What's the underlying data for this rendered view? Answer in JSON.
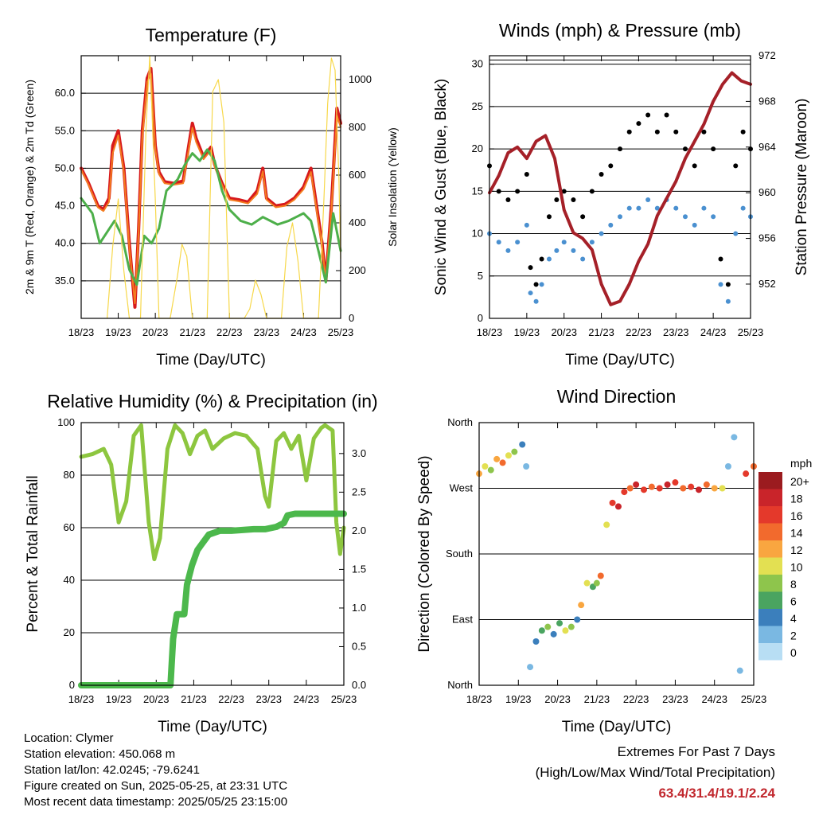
{
  "footer": {
    "location": "Location: Clymer",
    "elevation": "Station elevation: 450.068 m",
    "latlon": "Station lat/lon: 42.0245; -79.6241",
    "created": "Figure created on Sun, 2025-05-25, at 23:31 UTC",
    "recent": "Most recent data timestamp: 2025/05/25 23:15:00",
    "extremes_title": "Extremes For Past 7 Days",
    "extremes_sub": "(High/Low/Max Wind/Total Precipitation)",
    "extremes_values": "63.4/31.4/19.1/2.24"
  },
  "chart_data": [
    {
      "type": "line",
      "title": "Temperature (F)",
      "xlabel": "Time (Day/UTC)",
      "ylabel": "2m & 9m T (Red, Orange) & 2m Td (Green)",
      "y2label": "Solar Insolation (Yellow)",
      "xticks": [
        "18/23",
        "19/23",
        "20/23",
        "21/23",
        "22/23",
        "23/23",
        "24/23",
        "25/23"
      ],
      "xlim": [
        0,
        7
      ],
      "ylim": [
        30,
        65
      ],
      "yticks": [
        35.0,
        40.0,
        45.0,
        50.0,
        55.0,
        60.0
      ],
      "y2lim": [
        0,
        1100
      ],
      "y2ticks": [
        0,
        200,
        400,
        600,
        800,
        1000
      ],
      "colors": {
        "t2m": "#d7191c",
        "t9m": "#f47d20",
        "td": "#4daf4a",
        "solar": "#f7d84a"
      },
      "series": [
        {
          "name": "2m T",
          "axis": "left",
          "x": [
            0,
            0.2,
            0.45,
            0.6,
            0.75,
            0.85,
            1,
            1.15,
            1.3,
            1.45,
            1.55,
            1.65,
            1.78,
            1.88,
            2,
            2.1,
            2.25,
            2.5,
            2.75,
            2.9,
            3,
            3.1,
            3.3,
            3.5,
            3.6,
            3.8,
            4,
            4.25,
            4.5,
            4.75,
            4.9,
            5,
            5.25,
            5.5,
            5.75,
            6,
            6.2,
            6.35,
            6.5,
            6.6,
            6.75,
            6.9,
            7
          ],
          "y": [
            50,
            48,
            45,
            44.5,
            46,
            53,
            55,
            50,
            40,
            31.5,
            42,
            55,
            62,
            63.3,
            53,
            49.5,
            48.2,
            48,
            48.3,
            53,
            56,
            54,
            51.5,
            52.8,
            50.5,
            48,
            46,
            45.8,
            45.5,
            47,
            50,
            46,
            45,
            45.2,
            46,
            47.5,
            50,
            45,
            40,
            35,
            45,
            58,
            56
          ]
        },
        {
          "name": "9m T",
          "axis": "left",
          "x": [
            0,
            0.2,
            0.45,
            0.6,
            0.75,
            0.85,
            1,
            1.15,
            1.3,
            1.45,
            1.55,
            1.65,
            1.78,
            1.88,
            2,
            2.1,
            2.25,
            2.5,
            2.75,
            2.9,
            3,
            3.1,
            3.3,
            3.5,
            3.6,
            3.8,
            4,
            4.25,
            4.5,
            4.75,
            4.9,
            5,
            5.25,
            5.5,
            5.75,
            6,
            6.2,
            6.35,
            6.5,
            6.6,
            6.75,
            6.9,
            7
          ],
          "y": [
            49.8,
            47.8,
            44.8,
            44.3,
            45.5,
            52,
            54.4,
            49.5,
            39.5,
            32,
            41.5,
            54,
            61.5,
            62.6,
            52.6,
            49.2,
            48,
            47.8,
            48,
            52.5,
            55.4,
            53.5,
            51.2,
            52.4,
            50.2,
            47.8,
            45.8,
            45.6,
            45.3,
            46.6,
            49.6,
            45.8,
            44.8,
            45,
            45.8,
            47.2,
            49.5,
            44.5,
            39.5,
            35.2,
            44.5,
            57,
            55.5
          ]
        },
        {
          "name": "2m Td",
          "axis": "left",
          "x": [
            0,
            0.3,
            0.5,
            0.7,
            0.9,
            1.1,
            1.3,
            1.5,
            1.7,
            1.9,
            2.1,
            2.3,
            2.6,
            2.8,
            3,
            3.2,
            3.4,
            3.6,
            3.8,
            4,
            4.3,
            4.6,
            4.9,
            5.1,
            5.3,
            5.6,
            5.8,
            6,
            6.2,
            6.4,
            6.6,
            6.8,
            7
          ],
          "y": [
            46,
            44,
            40,
            41.5,
            43,
            41,
            36.5,
            34.5,
            41,
            40,
            42,
            47,
            48.5,
            50.5,
            52,
            51,
            52.5,
            51,
            47,
            44.5,
            43,
            42.5,
            43.5,
            43,
            42.5,
            43,
            43.5,
            44,
            43,
            39,
            34.8,
            44,
            39
          ]
        },
        {
          "name": "Solar Insolation",
          "axis": "right",
          "x": [
            0.7,
            0.85,
            1,
            1.15,
            1.3,
            1.6,
            1.75,
            1.85,
            2,
            2.1,
            2.4,
            2.6,
            2.72,
            2.85,
            3,
            3.4,
            3.55,
            3.7,
            3.85,
            4,
            4.4,
            4.55,
            4.7,
            4.85,
            5,
            5.4,
            5.55,
            5.7,
            5.85,
            6,
            6.4,
            6.55,
            6.65,
            6.75,
            6.85,
            6.95,
            7
          ],
          "y": [
            0,
            300,
            500,
            200,
            0,
            0,
            800,
            1100,
            500,
            0,
            0,
            180,
            310,
            260,
            0,
            0,
            950,
            1000,
            820,
            0,
            0,
            40,
            160,
            100,
            0,
            0,
            300,
            400,
            240,
            0,
            0,
            500,
            900,
            1090,
            1040,
            600,
            250
          ]
        }
      ]
    },
    {
      "type": "scatter",
      "title": "Winds (mph) & Pressure (mb)",
      "xlabel": "Time (Day/UTC)",
      "ylabel": "Sonic Wind & Gust (Blue, Black)",
      "y2label": "Station Pressure (Maroon)",
      "xticks": [
        "18/23",
        "19/23",
        "20/23",
        "21/23",
        "22/23",
        "23/23",
        "24/23",
        "25/23"
      ],
      "xlim": [
        0,
        7
      ],
      "ylim": [
        0,
        31
      ],
      "yticks": [
        0,
        5,
        10,
        15,
        20,
        25,
        30
      ],
      "y2lim": [
        949,
        972
      ],
      "y2ticks": [
        952,
        956,
        960,
        964,
        968,
        972
      ],
      "colors": {
        "wind": "#4a90d0",
        "gust": "#000000",
        "pressure": "#a52028"
      },
      "series": [
        {
          "name": "Wind",
          "axis": "left",
          "x": [
            0,
            0.25,
            0.5,
            0.75,
            1,
            1.1,
            1.25,
            1.4,
            1.6,
            1.8,
            2,
            2.25,
            2.5,
            2.75,
            3,
            3.25,
            3.5,
            3.75,
            4,
            4.25,
            4.5,
            4.75,
            5,
            5.25,
            5.5,
            5.75,
            6,
            6.2,
            6.4,
            6.6,
            6.8,
            7
          ],
          "y": [
            10,
            9,
            8,
            9,
            11,
            3,
            2,
            4,
            7,
            8,
            9,
            8,
            7,
            9,
            10,
            11,
            12,
            13,
            13,
            14,
            13,
            14,
            13,
            12,
            11,
            13,
            12,
            4,
            2,
            10,
            13,
            12
          ]
        },
        {
          "name": "Gust",
          "axis": "left",
          "x": [
            0,
            0.25,
            0.5,
            0.75,
            1,
            1.1,
            1.25,
            1.4,
            1.6,
            1.8,
            2,
            2.25,
            2.5,
            2.75,
            3,
            3.25,
            3.5,
            3.75,
            4,
            4.25,
            4.5,
            4.75,
            5,
            5.25,
            5.5,
            5.75,
            6,
            6.2,
            6.4,
            6.6,
            6.8,
            7
          ],
          "y": [
            18,
            15,
            14,
            15,
            17,
            6,
            4,
            7,
            12,
            14,
            15,
            14,
            12,
            15,
            17,
            18,
            20,
            22,
            23,
            24,
            22,
            24,
            22,
            20,
            18,
            22,
            20,
            7,
            4,
            18,
            22,
            20
          ]
        },
        {
          "name": "Pressure",
          "axis": "right",
          "x": [
            0,
            0.25,
            0.5,
            0.75,
            1,
            1.25,
            1.5,
            1.75,
            2,
            2.25,
            2.5,
            2.75,
            3,
            3.25,
            3.5,
            3.75,
            4,
            4.25,
            4.5,
            4.75,
            5,
            5.25,
            5.5,
            5.75,
            6,
            6.25,
            6.5,
            6.75,
            7
          ],
          "y": [
            960,
            961.5,
            963.5,
            964,
            963,
            964.5,
            965,
            963,
            958.5,
            956.5,
            956,
            955,
            952,
            950.2,
            950.5,
            952,
            954,
            955.5,
            958,
            959.5,
            961,
            963,
            964.5,
            966,
            968,
            969.5,
            970.5,
            969.8,
            969.5
          ]
        }
      ]
    },
    {
      "type": "line",
      "title": "Relative Humidity (%) & Precipitation (in)",
      "xlabel": "Time (Day/UTC)",
      "ylabel": "Percent & Total Rainfall",
      "xticks": [
        "18/23",
        "19/23",
        "20/23",
        "21/23",
        "22/23",
        "23/23",
        "24/23",
        "25/23"
      ],
      "xlim": [
        0,
        7
      ],
      "ylim": [
        0,
        100
      ],
      "yticks": [
        0,
        20,
        40,
        60,
        80,
        100
      ],
      "y2lim": [
        0,
        3.4
      ],
      "y2ticks": [
        "0.0",
        "0.5",
        "1.0",
        "1.5",
        "2.0",
        "2.5",
        "3.0"
      ],
      "colors": {
        "rh": "#8dc63f",
        "precip": "#4cb84c"
      },
      "series": [
        {
          "name": "Relative Humidity",
          "axis": "left",
          "x": [
            0,
            0.3,
            0.6,
            0.8,
            1,
            1.2,
            1.4,
            1.6,
            1.8,
            1.95,
            2.1,
            2.3,
            2.5,
            2.7,
            2.9,
            3.1,
            3.3,
            3.5,
            3.8,
            4.1,
            4.4,
            4.7,
            4.9,
            5,
            5.2,
            5.4,
            5.6,
            5.8,
            6,
            6.2,
            6.4,
            6.5,
            6.7,
            6.8,
            6.9,
            7
          ],
          "y": [
            87,
            88,
            90,
            84,
            62,
            70,
            95,
            99,
            62,
            48,
            56,
            90,
            99,
            96,
            88,
            95,
            97,
            90,
            94,
            96,
            95,
            90,
            72,
            68,
            93,
            96,
            90,
            95,
            78,
            94,
            98,
            99,
            97,
            62,
            50,
            60
          ]
        },
        {
          "name": "Total Precipitation",
          "axis": "right",
          "x": [
            0,
            1,
            2,
            2.38,
            2.45,
            2.55,
            2.75,
            2.82,
            2.95,
            3.1,
            3.4,
            3.7,
            4,
            4.3,
            4.6,
            4.9,
            5.2,
            5.4,
            5.5,
            5.7,
            6,
            6.5,
            7
          ],
          "y": [
            0,
            0,
            0,
            0,
            0.6,
            0.92,
            0.92,
            1.3,
            1.55,
            1.75,
            1.95,
            2.0,
            2.0,
            2.01,
            2.02,
            2.02,
            2.05,
            2.1,
            2.2,
            2.22,
            2.22,
            2.22,
            2.22
          ]
        }
      ]
    },
    {
      "type": "scatter",
      "title": "Wind Direction",
      "xlabel": "Time (Day/UTC)",
      "ylabel": "Direction (Colored By Speed)",
      "xticks": [
        "18/23",
        "19/23",
        "20/23",
        "21/23",
        "22/23",
        "23/23",
        "24/23",
        "25/23"
      ],
      "xlim": [
        0,
        7
      ],
      "ylim": [
        0,
        360
      ],
      "yticks": [
        "North",
        "East",
        "South",
        "West",
        "North"
      ],
      "legend_title": "mph",
      "legend_labels": [
        "20+",
        "18",
        "16",
        "14",
        "12",
        "10",
        "8",
        "6",
        "4",
        "2",
        "0"
      ],
      "legend_colors": [
        "#9b1b1f",
        "#c9242a",
        "#e4392b",
        "#f26a2d",
        "#f9a640",
        "#e3e052",
        "#8ec54c",
        "#4aa460",
        "#3b7fbc",
        "#7ab8e2",
        "#b8def4"
      ],
      "points": {
        "x": [
          0,
          0.15,
          0.3,
          0.45,
          0.6,
          0.75,
          0.9,
          1.1,
          1.2,
          1.3,
          1.45,
          1.6,
          1.75,
          1.9,
          2.05,
          2.2,
          2.35,
          2.5,
          2.6,
          2.75,
          2.9,
          3.0,
          3.1,
          3.25,
          3.4,
          3.55,
          3.7,
          3.85,
          4.0,
          4.2,
          4.4,
          4.6,
          4.8,
          5.0,
          5.2,
          5.4,
          5.6,
          5.8,
          6.0,
          6.2,
          6.35,
          6.5,
          6.65,
          6.8,
          7.0
        ],
        "y": [
          290,
          300,
          295,
          310,
          305,
          315,
          320,
          330,
          300,
          25,
          60,
          75,
          80,
          70,
          85,
          75,
          80,
          90,
          110,
          140,
          135,
          140,
          150,
          220,
          250,
          245,
          265,
          270,
          275,
          268,
          272,
          270,
          275,
          278,
          270,
          272,
          268,
          275,
          270,
          270,
          300,
          340,
          20,
          290,
          300
        ],
        "speed": [
          12,
          10,
          8,
          12,
          14,
          10,
          8,
          4,
          2,
          2,
          4,
          6,
          8,
          4,
          6,
          10,
          8,
          4,
          12,
          10,
          6,
          8,
          14,
          10,
          16,
          18,
          16,
          14,
          18,
          16,
          14,
          16,
          18,
          16,
          14,
          16,
          18,
          14,
          12,
          10,
          2,
          2,
          2,
          16,
          14
        ]
      }
    }
  ]
}
